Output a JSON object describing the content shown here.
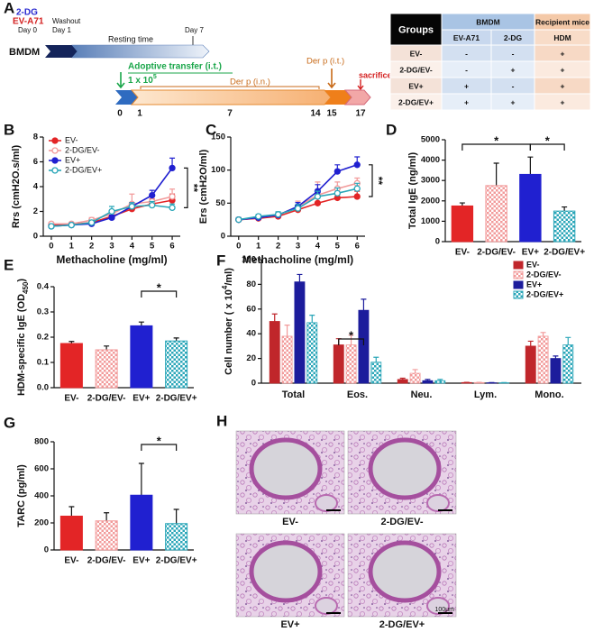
{
  "timeline": {
    "panel": "A",
    "drug": "2-DG",
    "virus": "EV-A71",
    "day0": "Day 0",
    "washout": "Washout",
    "day1": "Day 1",
    "resting": "Resting time",
    "day7": "Day 7",
    "cells": "BMDM",
    "transfer": "Adoptive transfer (i.t.)",
    "dose": [
      "1 x 10",
      "5"
    ],
    "derp_in": "Der p (i.n.)",
    "derp_it": "Der p (i.t.)",
    "sacrifice": "sacrifice",
    "days": [
      "0",
      "1",
      "7",
      "14",
      "15",
      "17"
    ]
  },
  "groups_table": {
    "header": [
      "Groups",
      "BMDM",
      "Recipient mice"
    ],
    "subheader": [
      "EV-A71",
      "2-DG",
      "HDM"
    ],
    "rows": [
      [
        "EV-",
        "-",
        "-",
        "+"
      ],
      [
        "2-DG/EV-",
        "-",
        "+",
        "+"
      ],
      [
        "EV+",
        "+",
        "-",
        "+"
      ],
      [
        "2-DG/EV+",
        "+",
        "+",
        "+"
      ]
    ]
  },
  "chart_data": [
    {
      "type": "line",
      "panel": "B",
      "ylabel": "Rrs (cmH2O.s/ml)",
      "xlabel": "Methacholine (mg/ml)",
      "x": [
        0,
        1,
        2,
        3,
        4,
        5,
        6
      ],
      "xlim": [
        -0.4,
        6.4
      ],
      "xticks": [
        0,
        1,
        2,
        3,
        4,
        5,
        6
      ],
      "ylim": [
        0,
        8
      ],
      "yticks": [
        0,
        2,
        4,
        6,
        8
      ],
      "legend": "upper left",
      "series": [
        {
          "name": "EV-",
          "color": "#e32526",
          "marker": "filled",
          "values": [
            0.9,
            0.95,
            1.1,
            1.6,
            2.2,
            2.6,
            2.9
          ],
          "errors": [
            0.1,
            0.1,
            0.1,
            0.2,
            0.3,
            0.4,
            0.5
          ]
        },
        {
          "name": "2-DG/EV-",
          "color": "#f29a9a",
          "marker": "open",
          "values": [
            1.0,
            1.0,
            1.3,
            1.8,
            2.6,
            2.8,
            3.2
          ],
          "errors": [
            0.1,
            0.1,
            0.2,
            0.3,
            0.8,
            0.5,
            0.6
          ]
        },
        {
          "name": "EV+",
          "color": "#2020d0",
          "marker": "filled",
          "values": [
            0.8,
            0.9,
            1.0,
            1.5,
            2.4,
            3.3,
            5.5
          ],
          "errors": [
            0.1,
            0.1,
            0.1,
            0.2,
            0.3,
            0.4,
            0.8
          ]
        },
        {
          "name": "2-DG/EV+",
          "color": "#2aa6b8",
          "marker": "open",
          "values": [
            0.8,
            0.9,
            1.1,
            2.0,
            2.4,
            2.5,
            2.3
          ],
          "errors": [
            0.1,
            0.1,
            0.2,
            0.4,
            0.3,
            0.3,
            0.3
          ]
        }
      ],
      "annotations": [
        "**"
      ]
    },
    {
      "type": "line",
      "panel": "C",
      "ylabel": "Ers (cmH2O/ml)",
      "xlabel": "Methacholine (mg/ml)",
      "x": [
        0,
        1,
        2,
        3,
        4,
        5,
        6
      ],
      "xlim": [
        -0.4,
        6.4
      ],
      "xticks": [
        0,
        1,
        2,
        3,
        4,
        5,
        6
      ],
      "ylim": [
        0,
        150
      ],
      "yticks": [
        0,
        50,
        100,
        150
      ],
      "series": [
        {
          "name": "EV-",
          "color": "#e32526",
          "marker": "filled",
          "values": [
            25,
            27,
            30,
            40,
            50,
            58,
            60
          ],
          "errors": [
            3,
            3,
            3,
            5,
            8,
            8,
            8
          ]
        },
        {
          "name": "2-DG/EV-",
          "color": "#f29a9a",
          "marker": "open",
          "values": [
            25,
            28,
            32,
            45,
            62,
            72,
            80
          ],
          "errors": [
            3,
            3,
            4,
            8,
            20,
            10,
            8
          ]
        },
        {
          "name": "EV+",
          "color": "#2020d0",
          "marker": "filled",
          "values": [
            25,
            28,
            32,
            45,
            68,
            98,
            108
          ],
          "errors": [
            3,
            3,
            4,
            6,
            10,
            10,
            12
          ]
        },
        {
          "name": "2-DG/EV+",
          "color": "#2aa6b8",
          "marker": "open",
          "values": [
            25,
            30,
            33,
            42,
            60,
            65,
            72
          ],
          "errors": [
            3,
            3,
            4,
            6,
            8,
            8,
            8
          ]
        }
      ],
      "annotations": [
        "**"
      ]
    },
    {
      "type": "bar",
      "panel": "D",
      "ylabel": "Total IgE (ng/ml)",
      "categories": [
        "EV-",
        "2-DG/EV-",
        "EV+",
        "2-DG/EV+"
      ],
      "values": [
        1750,
        2750,
        3300,
        1500
      ],
      "errors": [
        150,
        1100,
        850,
        200
      ],
      "colors": [
        "#e32526",
        "#f29a9a",
        "#2020d0",
        "#2aa6b8"
      ],
      "patterns": [
        "solid",
        "checker",
        "solid",
        "checker"
      ],
      "ylim": [
        0,
        5000
      ],
      "yticks": [
        0,
        1000,
        2000,
        3000,
        4000,
        5000
      ],
      "annotations": [
        "*",
        "*"
      ]
    },
    {
      "type": "bar",
      "panel": "E",
      "ylabel": [
        "HDM-specific IgE (OD",
        "450",
        ")"
      ],
      "categories": [
        "EV-",
        "2-DG/EV-",
        "EV+",
        "2-DG/EV+"
      ],
      "values": [
        0.175,
        0.15,
        0.245,
        0.185
      ],
      "errors": [
        0.008,
        0.015,
        0.015,
        0.012
      ],
      "colors": [
        "#e32526",
        "#f29a9a",
        "#2020d0",
        "#2aa6b8"
      ],
      "patterns": [
        "solid",
        "checker",
        "solid",
        "checker"
      ],
      "ylim": [
        0,
        0.4
      ],
      "yticks": [
        {
          "value": 0,
          "label": "0.0"
        },
        0.1,
        0.2,
        0.3,
        0.4
      ],
      "annotations": [
        "*"
      ]
    },
    {
      "type": "grouped_bar",
      "panel": "F",
      "ylabel": [
        "Cell number ( x 10",
        "4",
        "/ml)"
      ],
      "categories": [
        "Total",
        "Eos.",
        "Neu.",
        "Lym.",
        "Mono."
      ],
      "ylim": [
        0,
        100
      ],
      "yticks": [
        0,
        20,
        40,
        60,
        80,
        100
      ],
      "legend": "upper right",
      "series": [
        {
          "name": "EV-",
          "color": "#c0262b",
          "pattern": "solid",
          "values": [
            50,
            31,
            3,
            0.5,
            30
          ],
          "errors": [
            6,
            5,
            1,
            0.2,
            4
          ]
        },
        {
          "name": "2-DG/EV-",
          "color": "#f29a9a",
          "pattern": "checker",
          "values": [
            38,
            31,
            8,
            0.5,
            38
          ],
          "errors": [
            9,
            8,
            3,
            0.2,
            3
          ]
        },
        {
          "name": "EV+",
          "color": "#1c1c9c",
          "pattern": "solid",
          "values": [
            82,
            59,
            2,
            0.3,
            20
          ],
          "errors": [
            6,
            9,
            1,
            0.2,
            2
          ]
        },
        {
          "name": "2-DG/EV+",
          "color": "#2aa6b8",
          "pattern": "checker",
          "values": [
            49,
            17,
            2,
            0.3,
            31
          ],
          "errors": [
            6,
            4,
            1,
            0.2,
            6
          ]
        }
      ],
      "annotations": [
        "*"
      ]
    },
    {
      "type": "bar",
      "panel": "G",
      "ylabel": "TARC (pg/ml)",
      "categories": [
        "EV-",
        "2-DG/EV-",
        "EV+",
        "2-DG/EV+"
      ],
      "values": [
        250,
        215,
        405,
        195
      ],
      "errors": [
        70,
        60,
        235,
        105
      ],
      "colors": [
        "#e32526",
        "#f29a9a",
        "#2020d0",
        "#2aa6b8"
      ],
      "patterns": [
        "solid",
        "checker",
        "solid",
        "checker"
      ],
      "ylim": [
        0,
        800
      ],
      "yticks": [
        0,
        200,
        400,
        600,
        800
      ],
      "annotations": [
        "*"
      ]
    }
  ],
  "histology": {
    "panel": "H",
    "labels": [
      "EV-",
      "2-DG/EV-",
      "EV+",
      "2-DG/EV+"
    ],
    "scale": "100μm"
  }
}
